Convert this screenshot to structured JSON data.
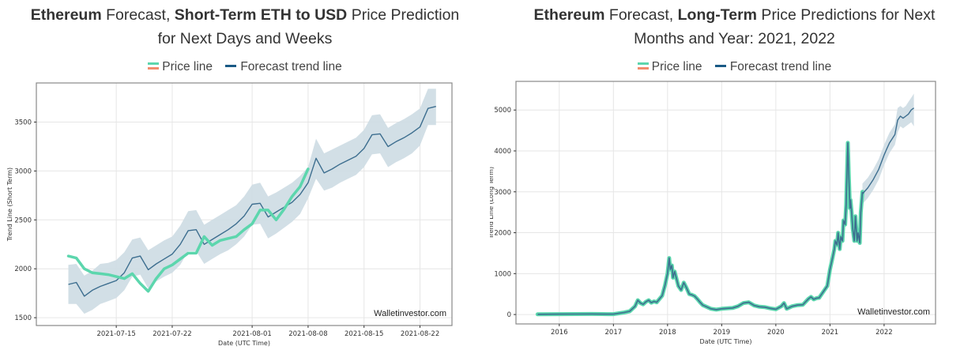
{
  "colors": {
    "price_line": "#5cd6ad",
    "price_legend_top": "#5cd6ad",
    "price_legend_bottom": "#f28c6c",
    "forecast_line": "#3d6e8f",
    "forecast_legend": "#1a5a85",
    "band_fill": "#cddbe3",
    "grid": "#e6e6e6",
    "frame": "#888888"
  },
  "legend": {
    "price_label": "Price line",
    "forecast_label": "Forecast trend line"
  },
  "short_term": {
    "title_bold1": "Ethereum",
    "title_text1": " Forecast, ",
    "title_bold2": "Short-Term ETH to USD",
    "title_text2": " Price Prediction",
    "title_line2": "for Next Days and Weeks"
  },
  "long_term": {
    "title_bold1": "Ethereum",
    "title_text1": " Forecast, ",
    "title_bold2": "Long-Term",
    "title_text2": " Price Predictions for Next",
    "title_line2": "Months and Year: 2021, 2022"
  },
  "chart_data": [
    {
      "type": "line",
      "id": "short_term",
      "title": "Ethereum Forecast, Short-Term ETH to USD Price Prediction for Next Days and Weeks",
      "xlabel": "Date (UTC Time)",
      "ylabel": "Trend Line (Short Term)",
      "watermark": "Walletinvestor.com",
      "grid": true,
      "legend": "top-center",
      "x_type": "date",
      "xlim": [
        "2021-07-05",
        "2021-08-26"
      ],
      "ylim": [
        1420,
        3900
      ],
      "x_ticks": [
        "2021-07-15",
        "2021-07-22",
        "2021-08-01",
        "2021-08-08",
        "2021-08-15",
        "2021-08-22"
      ],
      "y_ticks": [
        1500,
        2000,
        2500,
        3000,
        3500
      ],
      "series": [
        {
          "name": "Price line",
          "x": [
            "2021-07-09",
            "2021-07-10",
            "2021-07-11",
            "2021-07-12",
            "2021-07-13",
            "2021-07-14",
            "2021-07-15",
            "2021-07-16",
            "2021-07-17",
            "2021-07-18",
            "2021-07-19",
            "2021-07-20",
            "2021-07-21",
            "2021-07-22",
            "2021-07-23",
            "2021-07-24",
            "2021-07-25",
            "2021-07-26",
            "2021-07-27",
            "2021-07-28",
            "2021-07-29",
            "2021-07-30",
            "2021-07-31",
            "2021-08-01",
            "2021-08-02",
            "2021-08-03",
            "2021-08-04",
            "2021-08-05",
            "2021-08-06",
            "2021-08-07",
            "2021-08-08"
          ],
          "values": [
            2130,
            2110,
            2000,
            1960,
            1950,
            1940,
            1920,
            1900,
            1950,
            1850,
            1770,
            1900,
            2000,
            2040,
            2100,
            2160,
            2160,
            2330,
            2240,
            2290,
            2310,
            2330,
            2400,
            2460,
            2600,
            2600,
            2500,
            2610,
            2740,
            2840,
            3020
          ]
        },
        {
          "name": "Forecast trend line",
          "x": [
            "2021-07-09",
            "2021-07-10",
            "2021-07-11",
            "2021-07-12",
            "2021-07-13",
            "2021-07-14",
            "2021-07-15",
            "2021-07-16",
            "2021-07-17",
            "2021-07-18",
            "2021-07-19",
            "2021-07-20",
            "2021-07-21",
            "2021-07-22",
            "2021-07-23",
            "2021-07-24",
            "2021-07-25",
            "2021-07-26",
            "2021-07-27",
            "2021-07-28",
            "2021-07-29",
            "2021-07-30",
            "2021-07-31",
            "2021-08-01",
            "2021-08-02",
            "2021-08-03",
            "2021-08-04",
            "2021-08-05",
            "2021-08-06",
            "2021-08-07",
            "2021-08-08",
            "2021-08-09",
            "2021-08-10",
            "2021-08-11",
            "2021-08-12",
            "2021-08-13",
            "2021-08-14",
            "2021-08-15",
            "2021-08-16",
            "2021-08-17",
            "2021-08-18",
            "2021-08-19",
            "2021-08-20",
            "2021-08-21",
            "2021-08-22",
            "2021-08-23",
            "2021-08-24"
          ],
          "values": [
            1840,
            1860,
            1720,
            1780,
            1820,
            1850,
            1880,
            1960,
            2110,
            2130,
            1990,
            2050,
            2100,
            2150,
            2250,
            2390,
            2400,
            2250,
            2300,
            2350,
            2400,
            2460,
            2540,
            2660,
            2670,
            2530,
            2580,
            2630,
            2680,
            2760,
            2880,
            3130,
            2980,
            3020,
            3070,
            3110,
            3150,
            3230,
            3370,
            3380,
            3250,
            3300,
            3340,
            3390,
            3450,
            3640,
            3660
          ],
          "lower": [
            1640,
            1640,
            1540,
            1580,
            1640,
            1670,
            1700,
            1780,
            1920,
            1940,
            1800,
            1870,
            1920,
            1960,
            2040,
            2180,
            2180,
            2050,
            2100,
            2150,
            2190,
            2250,
            2330,
            2450,
            2460,
            2310,
            2360,
            2420,
            2480,
            2560,
            2720,
            2920,
            2800,
            2830,
            2880,
            2920,
            2960,
            3040,
            3170,
            3180,
            3040,
            3090,
            3130,
            3180,
            3260,
            3470,
            3470
          ],
          "upper": [
            2040,
            2050,
            1930,
            1980,
            2050,
            2060,
            2090,
            2170,
            2300,
            2320,
            2190,
            2240,
            2290,
            2330,
            2440,
            2590,
            2600,
            2450,
            2500,
            2550,
            2600,
            2650,
            2740,
            2860,
            2880,
            2740,
            2780,
            2830,
            2880,
            2950,
            3040,
            3330,
            3180,
            3220,
            3260,
            3300,
            3340,
            3420,
            3570,
            3580,
            3440,
            3490,
            3530,
            3580,
            3640,
            3840,
            3840
          ]
        }
      ]
    },
    {
      "type": "line",
      "id": "long_term",
      "title": "Ethereum Forecast, Long-Term Price Predictions for Next Months and Year: 2021, 2022",
      "xlabel": "Date (UTC Time)",
      "ylabel": "Trend Line (Long Term)",
      "watermark": "Walletinvestor.com",
      "grid": true,
      "legend": "top-center",
      "x_type": "year",
      "xlim": [
        2015.2,
        2022.95
      ],
      "ylim": [
        -230,
        5700
      ],
      "x_ticks": [
        2016,
        2017,
        2018,
        2019,
        2020,
        2021,
        2022
      ],
      "y_ticks": [
        0,
        1000,
        2000,
        3000,
        4000,
        5000
      ],
      "series": [
        {
          "name": "Price line",
          "x": [
            2015.6,
            2016.0,
            2016.3,
            2016.6,
            2016.9,
            2017.0,
            2017.2,
            2017.3,
            2017.4,
            2017.45,
            2017.5,
            2017.55,
            2017.6,
            2017.65,
            2017.7,
            2017.75,
            2017.8,
            2017.85,
            2017.9,
            2017.95,
            2018.0,
            2018.03,
            2018.05,
            2018.08,
            2018.1,
            2018.13,
            2018.17,
            2018.2,
            2018.25,
            2018.3,
            2018.35,
            2018.4,
            2018.45,
            2018.5,
            2018.55,
            2018.6,
            2018.65,
            2018.7,
            2018.8,
            2018.9,
            2019.0,
            2019.1,
            2019.2,
            2019.3,
            2019.4,
            2019.5,
            2019.6,
            2019.7,
            2019.8,
            2019.9,
            2020.0,
            2020.1,
            2020.15,
            2020.2,
            2020.3,
            2020.4,
            2020.5,
            2020.6,
            2020.65,
            2020.7,
            2020.75,
            2020.8,
            2020.9,
            2020.95,
            2021.0,
            2021.05,
            2021.08,
            2021.1,
            2021.13,
            2021.15,
            2021.18,
            2021.2,
            2021.23,
            2021.25,
            2021.28,
            2021.3,
            2021.33,
            2021.35,
            2021.37,
            2021.38,
            2021.4,
            2021.42,
            2021.45,
            2021.47,
            2021.5,
            2021.52,
            2021.55,
            2021.57,
            2021.6
          ],
          "values": [
            5,
            10,
            12,
            14,
            10,
            10,
            50,
            80,
            200,
            350,
            280,
            250,
            310,
            350,
            290,
            320,
            300,
            380,
            460,
            700,
            1000,
            1380,
            1100,
            1200,
            900,
            1050,
            850,
            700,
            600,
            780,
            650,
            500,
            480,
            450,
            380,
            300,
            230,
            200,
            140,
            120,
            140,
            150,
            160,
            200,
            280,
            300,
            220,
            190,
            180,
            150,
            130,
            200,
            280,
            140,
            200,
            230,
            240,
            380,
            430,
            370,
            400,
            410,
            600,
            700,
            1100,
            1400,
            1600,
            1800,
            1700,
            2000,
            1600,
            1900,
            1800,
            2300,
            2200,
            2700,
            4200,
            3300,
            2600,
            2800,
            2500,
            2100,
            1800,
            2400,
            1800,
            2000,
            1750,
            2500,
            3000
          ]
        },
        {
          "name": "Forecast trend line",
          "x": [
            2021.6,
            2021.7,
            2021.8,
            2021.9,
            2022.0,
            2022.05,
            2022.1,
            2022.15,
            2022.2,
            2022.25,
            2022.3,
            2022.35,
            2022.4,
            2022.45,
            2022.5,
            2022.55
          ],
          "values": [
            2950,
            3100,
            3300,
            3550,
            3900,
            4050,
            4200,
            4300,
            4400,
            4750,
            4850,
            4800,
            4850,
            4900,
            5000,
            5050
          ],
          "lower": [
            2700,
            2850,
            3050,
            3300,
            3650,
            3800,
            3950,
            4050,
            4150,
            4450,
            4600,
            4550,
            4600,
            4650,
            4700,
            4600
          ],
          "upper": [
            3200,
            3350,
            3550,
            3800,
            4150,
            4300,
            4450,
            4550,
            4650,
            5050,
            5100,
            5050,
            5100,
            5200,
            5300,
            5400
          ]
        }
      ]
    }
  ]
}
